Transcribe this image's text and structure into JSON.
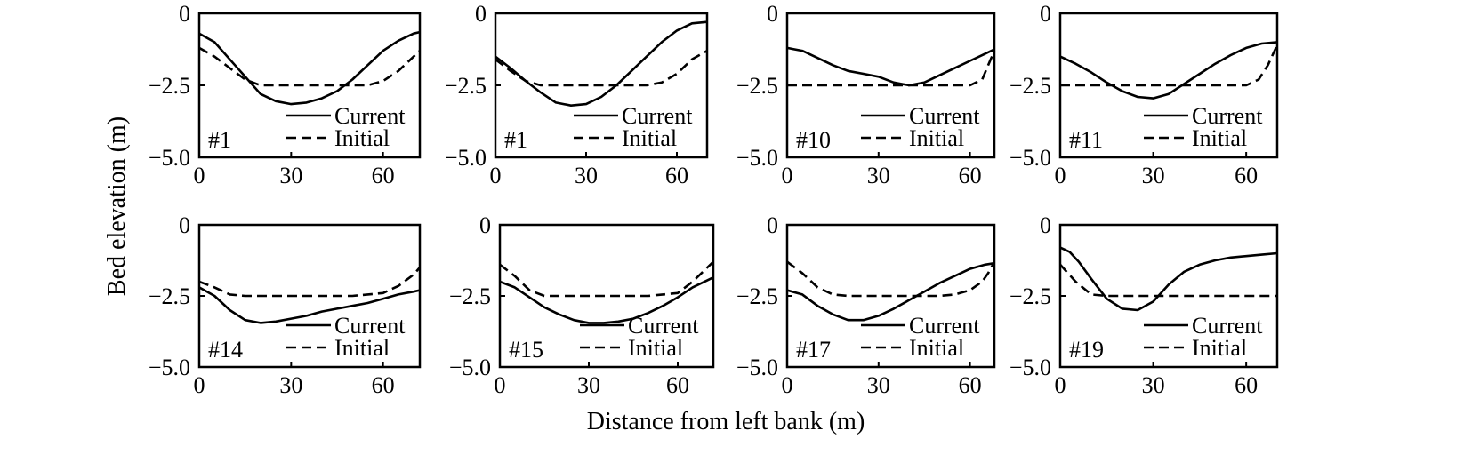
{
  "figure": {
    "ylabel": "Bed elevation (m)",
    "xlabel": "Distance from left bank (m)"
  },
  "chart_data": [
    {
      "type": "line",
      "label": "#1",
      "xlim": [
        0,
        72
      ],
      "ylim": [
        -5.0,
        0
      ],
      "xticks": [
        "0",
        "30",
        "60"
      ],
      "yticks": [
        "0",
        "-2.5",
        "-5.0"
      ],
      "series": [
        {
          "name": "Current",
          "style": "solid",
          "x": [
            0,
            5,
            10,
            15,
            20,
            25,
            30,
            35,
            40,
            45,
            50,
            55,
            60,
            65,
            70,
            72
          ],
          "y": [
            -0.7,
            -1.0,
            -1.6,
            -2.2,
            -2.8,
            -3.05,
            -3.15,
            -3.1,
            -2.95,
            -2.7,
            -2.3,
            -1.8,
            -1.3,
            -0.95,
            -0.7,
            -0.65
          ]
        },
        {
          "name": "Initial",
          "style": "dashed",
          "x": [
            0,
            5,
            10,
            15,
            20,
            25,
            30,
            35,
            40,
            45,
            50,
            55,
            60,
            65,
            70,
            72
          ],
          "y": [
            -1.2,
            -1.5,
            -1.9,
            -2.3,
            -2.5,
            -2.5,
            -2.5,
            -2.5,
            -2.5,
            -2.5,
            -2.5,
            -2.5,
            -2.35,
            -2.0,
            -1.5,
            -1.3
          ]
        }
      ]
    },
    {
      "type": "line",
      "label": "#1",
      "xlim": [
        0,
        70
      ],
      "ylim": [
        -5.0,
        0
      ],
      "xticks": [
        "0",
        "30",
        "60"
      ],
      "yticks": [
        "0",
        "-2.5",
        "-5.0"
      ],
      "series": [
        {
          "name": "Current",
          "style": "solid",
          "x": [
            0,
            5,
            10,
            15,
            20,
            25,
            30,
            35,
            40,
            45,
            50,
            55,
            60,
            65,
            70
          ],
          "y": [
            -1.5,
            -1.9,
            -2.35,
            -2.75,
            -3.1,
            -3.2,
            -3.15,
            -2.9,
            -2.5,
            -2.0,
            -1.5,
            -1.0,
            -0.6,
            -0.35,
            -0.3
          ]
        },
        {
          "name": "Initial",
          "style": "dashed",
          "x": [
            0,
            5,
            10,
            15,
            20,
            25,
            30,
            35,
            40,
            45,
            50,
            55,
            60,
            65,
            70
          ],
          "y": [
            -1.6,
            -2.0,
            -2.35,
            -2.5,
            -2.5,
            -2.5,
            -2.5,
            -2.5,
            -2.5,
            -2.5,
            -2.5,
            -2.4,
            -2.1,
            -1.6,
            -1.3
          ]
        }
      ]
    },
    {
      "type": "line",
      "label": "#10",
      "xlim": [
        0,
        68
      ],
      "ylim": [
        -5.0,
        0
      ],
      "xticks": [
        "0",
        "30",
        "60"
      ],
      "yticks": [
        "0",
        "-2.5",
        "-5.0"
      ],
      "series": [
        {
          "name": "Current",
          "style": "solid",
          "x": [
            0,
            5,
            10,
            15,
            20,
            25,
            30,
            35,
            40,
            45,
            50,
            55,
            60,
            65,
            68
          ],
          "y": [
            -1.2,
            -1.3,
            -1.55,
            -1.8,
            -2.0,
            -2.1,
            -2.2,
            -2.4,
            -2.5,
            -2.4,
            -2.15,
            -1.9,
            -1.65,
            -1.4,
            -1.25
          ]
        },
        {
          "name": "Initial",
          "style": "dashed",
          "x": [
            0,
            10,
            20,
            30,
            40,
            50,
            60,
            64,
            66,
            68
          ],
          "y": [
            -2.5,
            -2.5,
            -2.5,
            -2.5,
            -2.5,
            -2.5,
            -2.5,
            -2.3,
            -1.8,
            -1.3
          ]
        }
      ]
    },
    {
      "type": "line",
      "label": "#11",
      "xlim": [
        0,
        70
      ],
      "ylim": [
        -5.0,
        0
      ],
      "xticks": [
        "0",
        "30",
        "60"
      ],
      "yticks": [
        "0",
        "-2.5",
        "-5.0"
      ],
      "series": [
        {
          "name": "Current",
          "style": "solid",
          "x": [
            0,
            5,
            10,
            15,
            20,
            25,
            30,
            35,
            40,
            45,
            50,
            55,
            60,
            65,
            70
          ],
          "y": [
            -1.5,
            -1.75,
            -2.05,
            -2.4,
            -2.7,
            -2.9,
            -2.95,
            -2.8,
            -2.45,
            -2.1,
            -1.75,
            -1.45,
            -1.2,
            -1.05,
            -1.0
          ]
        },
        {
          "name": "Initial",
          "style": "dashed",
          "x": [
            0,
            10,
            20,
            30,
            40,
            50,
            60,
            64,
            67,
            70
          ],
          "y": [
            -2.5,
            -2.5,
            -2.5,
            -2.5,
            -2.5,
            -2.5,
            -2.5,
            -2.3,
            -1.8,
            -1.1
          ]
        }
      ]
    },
    {
      "type": "line",
      "label": "#14",
      "xlim": [
        0,
        72
      ],
      "ylim": [
        -5.0,
        0
      ],
      "xticks": [
        "0",
        "30",
        "60"
      ],
      "yticks": [
        "0",
        "-2.5",
        "-5.0"
      ],
      "series": [
        {
          "name": "Current",
          "style": "solid",
          "x": [
            0,
            5,
            10,
            15,
            20,
            25,
            30,
            35,
            40,
            45,
            50,
            55,
            60,
            65,
            70,
            72
          ],
          "y": [
            -2.2,
            -2.5,
            -3.0,
            -3.35,
            -3.45,
            -3.4,
            -3.3,
            -3.2,
            -3.05,
            -2.95,
            -2.85,
            -2.75,
            -2.6,
            -2.45,
            -2.35,
            -2.3
          ]
        },
        {
          "name": "Initial",
          "style": "dashed",
          "x": [
            0,
            5,
            10,
            15,
            20,
            30,
            40,
            50,
            60,
            65,
            70,
            72
          ],
          "y": [
            -2.0,
            -2.2,
            -2.45,
            -2.5,
            -2.5,
            -2.5,
            -2.5,
            -2.5,
            -2.4,
            -2.15,
            -1.75,
            -1.5
          ]
        }
      ]
    },
    {
      "type": "line",
      "label": "#15",
      "xlim": [
        0,
        72
      ],
      "ylim": [
        -5.0,
        0
      ],
      "xticks": [
        "0",
        "30",
        "60"
      ],
      "yticks": [
        "0",
        "-2.5",
        "-5.0"
      ],
      "series": [
        {
          "name": "Current",
          "style": "solid",
          "x": [
            0,
            5,
            10,
            15,
            20,
            25,
            30,
            35,
            40,
            45,
            50,
            55,
            60,
            65,
            70,
            72
          ],
          "y": [
            -2.0,
            -2.2,
            -2.55,
            -2.9,
            -3.15,
            -3.35,
            -3.45,
            -3.45,
            -3.4,
            -3.3,
            -3.1,
            -2.85,
            -2.55,
            -2.2,
            -1.95,
            -1.85
          ]
        },
        {
          "name": "Initial",
          "style": "dashed",
          "x": [
            0,
            5,
            10,
            15,
            20,
            30,
            40,
            50,
            60,
            65,
            70,
            72
          ],
          "y": [
            -1.4,
            -1.8,
            -2.3,
            -2.5,
            -2.5,
            -2.5,
            -2.5,
            -2.5,
            -2.4,
            -2.0,
            -1.5,
            -1.3
          ]
        }
      ]
    },
    {
      "type": "line",
      "label": "#17",
      "xlim": [
        0,
        68
      ],
      "ylim": [
        -5.0,
        0
      ],
      "xticks": [
        "0",
        "30",
        "60"
      ],
      "yticks": [
        "0",
        "-2.5",
        "-5.0"
      ],
      "series": [
        {
          "name": "Current",
          "style": "solid",
          "x": [
            0,
            5,
            10,
            15,
            20,
            25,
            30,
            35,
            40,
            45,
            50,
            55,
            60,
            65,
            68
          ],
          "y": [
            -2.3,
            -2.45,
            -2.85,
            -3.15,
            -3.35,
            -3.35,
            -3.2,
            -2.95,
            -2.65,
            -2.35,
            -2.05,
            -1.8,
            -1.55,
            -1.4,
            -1.35
          ]
        },
        {
          "name": "Initial",
          "style": "dashed",
          "x": [
            0,
            5,
            10,
            15,
            20,
            30,
            40,
            50,
            55,
            60,
            64,
            66,
            68
          ],
          "y": [
            -1.3,
            -1.7,
            -2.2,
            -2.45,
            -2.5,
            -2.5,
            -2.5,
            -2.5,
            -2.45,
            -2.3,
            -2.0,
            -1.7,
            -1.3
          ]
        }
      ]
    },
    {
      "type": "line",
      "label": "#19",
      "xlim": [
        0,
        70
      ],
      "ylim": [
        -5.0,
        0
      ],
      "xticks": [
        "0",
        "30",
        "60"
      ],
      "yticks": [
        "0",
        "-2.5",
        "-5.0"
      ],
      "series": [
        {
          "name": "Current",
          "style": "solid",
          "x": [
            0,
            3,
            6,
            10,
            15,
            20,
            25,
            30,
            35,
            40,
            45,
            50,
            55,
            60,
            65,
            70
          ],
          "y": [
            -0.8,
            -0.95,
            -1.3,
            -1.9,
            -2.6,
            -2.95,
            -3.0,
            -2.7,
            -2.1,
            -1.65,
            -1.4,
            -1.25,
            -1.15,
            -1.1,
            -1.05,
            -1.0
          ]
        },
        {
          "name": "Initial",
          "style": "dashed",
          "x": [
            0,
            5,
            10,
            15,
            20,
            30,
            40,
            50,
            60,
            70
          ],
          "y": [
            -1.4,
            -2.0,
            -2.45,
            -2.5,
            -2.5,
            -2.5,
            -2.5,
            -2.5,
            -2.5,
            -2.5
          ]
        }
      ]
    }
  ]
}
